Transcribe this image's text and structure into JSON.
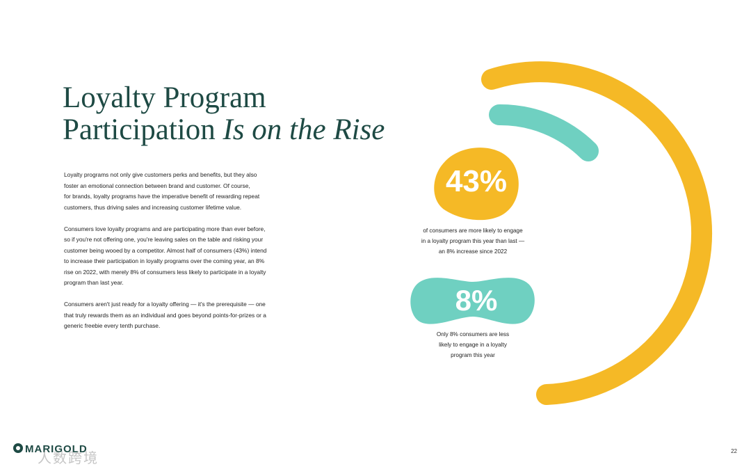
{
  "title": {
    "line1": "Loyalty Program",
    "line2_plain": "Participation ",
    "line2_italic": "Is on the Rise"
  },
  "body": [
    [
      "Loyalty programs not only give customers perks and benefits, but they also",
      "foster an emotional connection between brand and customer. Of course,",
      "for brands, loyalty programs have the imperative benefit of rewarding repeat",
      "customers, thus driving sales and increasing customer lifetime value."
    ],
    [
      "Consumers love loyalty programs and are participating more than ever before,",
      "so if you're not offering one, you're leaving sales on the table and risking your",
      "customer being wooed by a competitor. Almost half of consumers (43%) intend",
      "to increase their participation in loyalty programs over the coming year, an 8%",
      "rise on 2022, with merely 8% of consumers less likely to participate in a loyalty",
      "program than last year."
    ],
    [
      "Consumers aren't just ready for a loyalty offering — it's the prerequisite — one",
      "that truly rewards them as an individual and goes beyond points-for-prizes or a",
      "generic freebie every tenth purchase."
    ]
  ],
  "stats": [
    {
      "value": "43%",
      "caption": [
        "of consumers are more likely to engage",
        "in a loyalty program this year than last —",
        "an 8% increase since 2022"
      ]
    },
    {
      "value": "8%",
      "caption": [
        "Only 8% consumers are less",
        "likely to engage in a loyalty",
        "program this year"
      ]
    }
  ],
  "footer": {
    "logo": "MARIGOLD",
    "page": "22",
    "watermark": "人数跨境"
  }
}
